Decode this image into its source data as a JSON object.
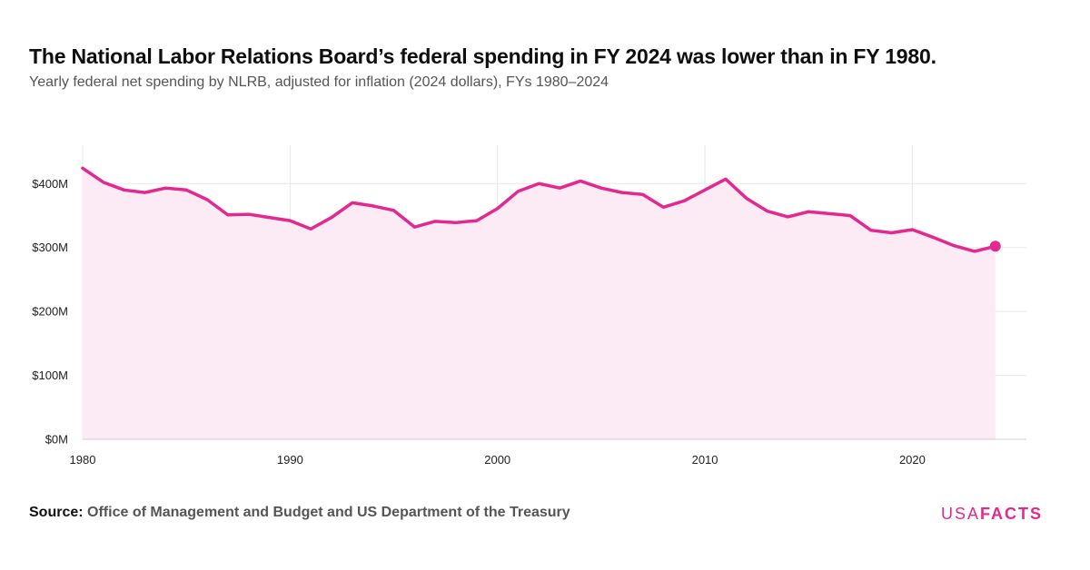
{
  "header": {
    "title": "The National Labor Relations Board’s federal spending in FY 2024 was lower than in FY 1980.",
    "subtitle": "Yearly federal net spending by NLRB, adjusted for inflation (2024 dollars), FYs 1980–2024"
  },
  "footer": {
    "source_label": "Source:",
    "source_text": "Office of Management and Budget and US Department of the Treasury",
    "logo_light": "USA",
    "logo_bold": "FACTS"
  },
  "colors": {
    "line": "#e3298f",
    "area": "#fcebf4",
    "grid": "#e8e8e8"
  },
  "chart_data": {
    "type": "area",
    "title": "The National Labor Relations Board’s federal spending in FY 2024 was lower than in FY 1980.",
    "subtitle": "Yearly federal net spending by NLRB, adjusted for inflation (2024 dollars), FYs 1980–2024",
    "xlabel": "",
    "ylabel": "",
    "x_ticks": [
      1980,
      1990,
      2000,
      2010,
      2020
    ],
    "x_lim": [
      1980,
      2025.5
    ],
    "y_ticks": [
      0,
      100,
      200,
      300,
      400
    ],
    "y_tick_labels": [
      "$0M",
      "$100M",
      "$200M",
      "$300M",
      "$400M"
    ],
    "y_lim": [
      0,
      460
    ],
    "grid": true,
    "highlight_last_point": true,
    "series": [
      {
        "x": [
          1980,
          1981,
          1982,
          1983,
          1984,
          1985,
          1986,
          1987,
          1988,
          1989,
          1990,
          1991,
          1992,
          1993,
          1994,
          1995,
          1996,
          1997,
          1998,
          1999,
          2000,
          2001,
          2002,
          2003,
          2004,
          2005,
          2006,
          2007,
          2008,
          2009,
          2010,
          2011,
          2012,
          2013,
          2014,
          2015,
          2016,
          2017,
          2018,
          2019,
          2020,
          2021,
          2022,
          2023,
          2024
        ],
        "values": [
          424,
          402,
          390,
          386,
          393,
          390,
          375,
          351,
          352,
          347,
          342,
          329,
          347,
          370,
          365,
          358,
          332,
          341,
          339,
          342,
          361,
          388,
          400,
          393,
          404,
          393,
          386,
          383,
          363,
          373,
          390,
          407,
          377,
          357,
          348,
          356,
          353,
          350,
          327,
          323,
          328,
          316,
          303,
          294,
          302
        ]
      }
    ]
  }
}
